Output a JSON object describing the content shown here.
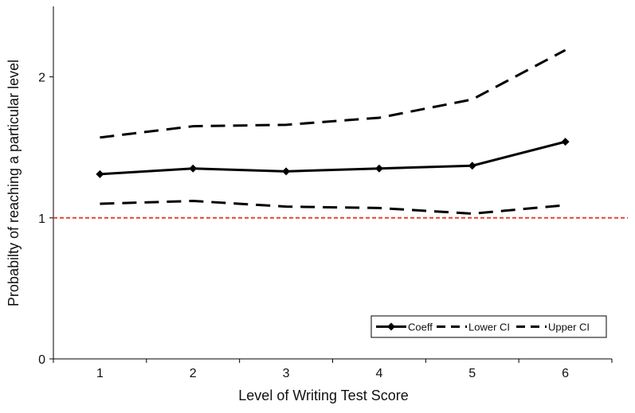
{
  "chart_data": {
    "type": "line",
    "title": "",
    "xlabel": "Level of Writing Test Score",
    "ylabel": "Probabilty of reaching a particular level",
    "categories": [
      "1",
      "2",
      "3",
      "4",
      "5",
      "6"
    ],
    "ylim": [
      0,
      2.5
    ],
    "yticks": [
      0,
      1,
      2
    ],
    "ytick_labels": [
      "0",
      "1",
      "2"
    ],
    "grid": false,
    "reference_line": {
      "y": 1,
      "color": "#e8432d",
      "style": "dashed"
    },
    "legend_position": "bottom-right",
    "series": [
      {
        "name": "Coeff",
        "values": [
          1.31,
          1.35,
          1.33,
          1.35,
          1.37,
          1.54
        ],
        "style": "solid-diamond",
        "color": "#000000"
      },
      {
        "name": "Lower CI",
        "values": [
          1.1,
          1.12,
          1.08,
          1.07,
          1.03,
          1.09
        ],
        "style": "dashed",
        "color": "#000000"
      },
      {
        "name": "Upper CI",
        "values": [
          1.57,
          1.65,
          1.66,
          1.71,
          1.84,
          2.19
        ],
        "style": "dashed",
        "color": "#000000"
      }
    ]
  }
}
